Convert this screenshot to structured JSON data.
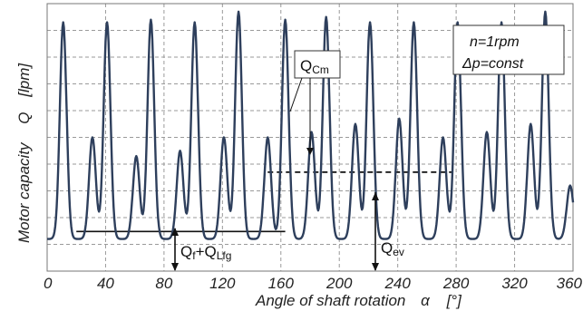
{
  "chart_data": {
    "type": "line",
    "xlabel_text": "Angle of shaft rotation",
    "xlabel_symbol": "α",
    "xlabel_unit": "[°]",
    "ylabel_text": "Motor capacity",
    "ylabel_symbol": "Q",
    "ylabel_unit": "[lpm]",
    "xlim": [
      0,
      360
    ],
    "x_ticks": [
      0,
      40,
      80,
      120,
      160,
      200,
      240,
      280,
      320,
      360
    ],
    "x_tick_labels": [
      "0",
      "40",
      "80",
      "120",
      "160",
      "200",
      "240",
      "280",
      "320",
      "360"
    ],
    "grid": true,
    "line_color": "#2e3f5c",
    "conditions": [
      "n=1rpm",
      "Δp=const"
    ],
    "annotations": {
      "q_cm": {
        "main": "Q",
        "sub": "Cm"
      },
      "q_f": {
        "main": "Q",
        "sub1": "f",
        "plus": "+Q",
        "sub2": "Lfg"
      },
      "q_ev": {
        "main": "Q",
        "sub": "ev"
      }
    },
    "baseline_level": 0.12,
    "min_line_level": 0.148,
    "mean_line_level": 0.37,
    "peaks": [
      {
        "x": 11,
        "level": 0.93
      },
      {
        "x": 31,
        "level": 0.5
      },
      {
        "x": 41,
        "level": 0.93
      },
      {
        "x": 61,
        "level": 0.43
      },
      {
        "x": 71,
        "level": 0.94
      },
      {
        "x": 91,
        "level": 0.45
      },
      {
        "x": 101,
        "level": 0.93
      },
      {
        "x": 121,
        "level": 0.5
      },
      {
        "x": 131,
        "level": 0.97
      },
      {
        "x": 151,
        "level": 0.5
      },
      {
        "x": 163,
        "level": 0.94
      },
      {
        "x": 181,
        "level": 0.52
      },
      {
        "x": 191,
        "level": 0.95
      },
      {
        "x": 211,
        "level": 0.55
      },
      {
        "x": 221,
        "level": 0.93
      },
      {
        "x": 241,
        "level": 0.57
      },
      {
        "x": 251,
        "level": 0.93
      },
      {
        "x": 271,
        "level": 0.5
      },
      {
        "x": 281,
        "level": 0.93
      },
      {
        "x": 301,
        "level": 0.52
      },
      {
        "x": 311,
        "level": 0.93
      },
      {
        "x": 331,
        "level": 0.55
      },
      {
        "x": 341,
        "level": 0.97
      },
      {
        "x": 358,
        "level": 0.32
      }
    ]
  }
}
